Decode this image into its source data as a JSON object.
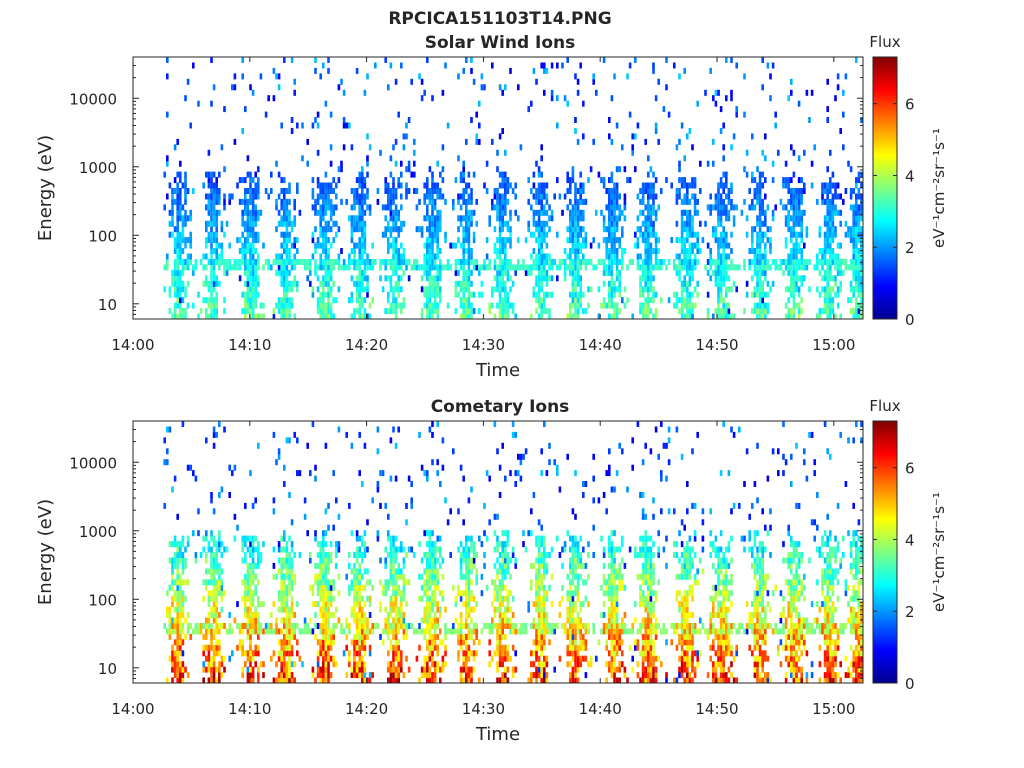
{
  "figure_title": "RPCICA151103T14.PNG",
  "colors": {
    "colormap": "jet",
    "colormap_stops": [
      "#00008f",
      "#0000ff",
      "#00ffff",
      "#ffff00",
      "#ff0000",
      "#800000"
    ]
  },
  "chart_data": [
    {
      "type": "heatmap",
      "title": "Solar Wind Ions",
      "xlabel": "Time",
      "ylabel": "Energy (eV)",
      "x_ticks": [
        "14:00",
        "14:10",
        "14:20",
        "14:30",
        "14:40",
        "14:50",
        "15:00"
      ],
      "x_tick_minutes": [
        0,
        10,
        20,
        30,
        40,
        50,
        60
      ],
      "xlim_minutes": [
        0,
        62.5
      ],
      "y_scale": "log",
      "ylim": [
        6,
        40000
      ],
      "y_ticks": [
        "10",
        "100",
        "1000",
        "10000"
      ],
      "y_tick_values": [
        10,
        100,
        1000,
        10000
      ],
      "colorbar": {
        "title": "Flux",
        "label": "eV⁻¹cm⁻²sr⁻¹s⁻¹",
        "range": [
          0,
          7.3
        ],
        "ticks": [
          "0",
          "2",
          "4",
          "6"
        ],
        "tick_values": [
          0,
          2,
          4,
          6
        ]
      },
      "data_start_minute": 2.6,
      "sweep_centers_minutes": [
        3.8,
        6.8,
        10.0,
        13.0,
        16.3,
        19.3,
        22.3,
        25.5,
        28.5,
        31.5,
        34.8,
        37.8,
        41.0,
        44.0,
        47.3,
        50.3,
        53.5,
        56.5,
        59.5,
        62.0
      ],
      "sweep_peak_flux": 4.8,
      "sweep_top_energy_eV": 700
    },
    {
      "type": "heatmap",
      "title": "Cometary Ions",
      "xlabel": "Time",
      "ylabel": "Energy (eV)",
      "x_ticks": [
        "14:00",
        "14:10",
        "14:20",
        "14:30",
        "14:40",
        "14:50",
        "15:00"
      ],
      "x_tick_minutes": [
        0,
        10,
        20,
        30,
        40,
        50,
        60
      ],
      "xlim_minutes": [
        0,
        62.5
      ],
      "y_scale": "log",
      "ylim": [
        6,
        40000
      ],
      "y_ticks": [
        "10",
        "100",
        "1000",
        "10000"
      ],
      "y_tick_values": [
        10,
        100,
        1000,
        10000
      ],
      "colorbar": {
        "title": "Flux",
        "label": "eV⁻¹cm⁻²sr⁻¹s⁻¹",
        "range": [
          0,
          7.3
        ],
        "ticks": [
          "0",
          "2",
          "4",
          "6"
        ],
        "tick_values": [
          0,
          2,
          4,
          6
        ]
      },
      "data_start_minute": 2.6,
      "sweep_centers_minutes": [
        3.8,
        6.8,
        10.0,
        13.0,
        16.3,
        19.3,
        22.3,
        25.5,
        28.5,
        31.5,
        34.8,
        37.8,
        41.0,
        44.0,
        47.3,
        50.3,
        53.5,
        56.5,
        59.5,
        62.0
      ],
      "sweep_peak_flux": 6.5,
      "sweep_top_energy_eV": 800
    }
  ]
}
